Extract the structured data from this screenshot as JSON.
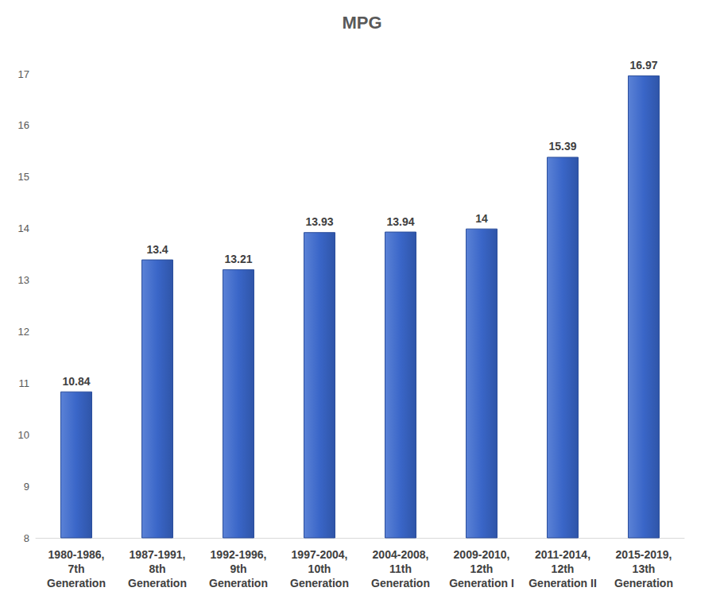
{
  "chart_data": {
    "type": "bar",
    "title": "MPG",
    "categories": [
      "1980-1986,\n7th\nGeneration",
      "1987-1991,\n8th\nGeneration",
      "1992-1996,\n9th\nGeneration",
      "1997-2004,\n10th\nGeneration",
      "2004-2008,\n11th\nGeneration",
      "2009-2010,\n12th\nGeneration I",
      "2011-2014,\n12th\nGeneration II",
      "2015-2019,\n13th\nGeneration"
    ],
    "values": [
      10.84,
      13.4,
      13.21,
      13.93,
      13.94,
      14,
      15.39,
      16.97
    ],
    "color": "#3a66c8",
    "ylim": [
      8,
      17
    ],
    "yticks": [
      8,
      9,
      10,
      11,
      12,
      13,
      14,
      15,
      16,
      17
    ],
    "grid": false,
    "data_labels": true
  }
}
